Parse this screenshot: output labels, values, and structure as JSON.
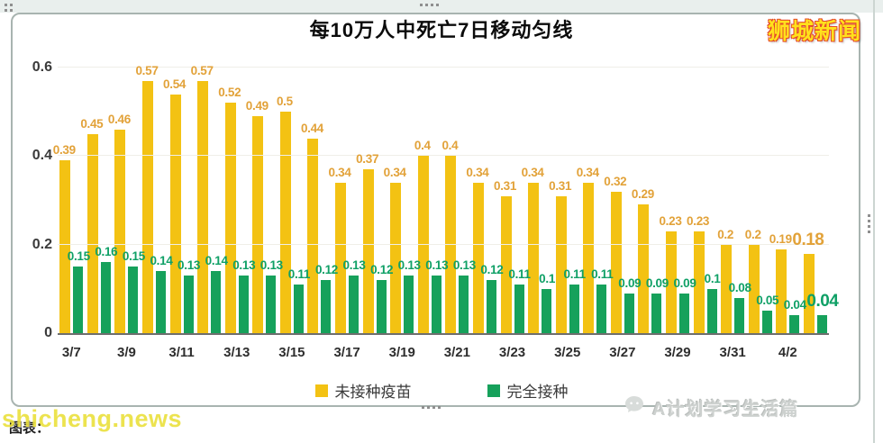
{
  "header": {
    "brand": "狮城新闻"
  },
  "chart_data": {
    "type": "bar",
    "title": "每10万人中死亡7日移动匀线",
    "categories": [
      "3/7",
      "3/8",
      "3/9",
      "3/10",
      "3/11",
      "3/12",
      "3/13",
      "3/14",
      "3/15",
      "3/16",
      "3/17",
      "3/18",
      "3/19",
      "3/20",
      "3/21",
      "3/22",
      "3/23",
      "3/24",
      "3/25",
      "3/26",
      "3/27",
      "3/28",
      "3/29",
      "3/30",
      "3/31",
      "4/1",
      "4/2",
      "4/3"
    ],
    "tick_every": 2,
    "x_tick_labels_visible": [
      "3/7",
      "3/9",
      "3/11",
      "3/13",
      "3/15",
      "3/17",
      "3/19",
      "3/21",
      "3/23",
      "3/25",
      "3/27",
      "3/29",
      "3/31",
      "4/2"
    ],
    "series": [
      {
        "name": "未接种疫苗",
        "color": "#F3C213",
        "label_color": "#E2A239",
        "values": [
          0.39,
          0.45,
          0.46,
          0.57,
          0.54,
          0.57,
          0.52,
          0.49,
          0.5,
          0.44,
          0.34,
          0.37,
          0.34,
          0.4,
          0.4,
          0.34,
          0.31,
          0.34,
          0.31,
          0.34,
          0.32,
          0.29,
          0.23,
          0.23,
          0.2,
          0.2,
          0.19,
          0.18
        ]
      },
      {
        "name": "完全接种",
        "color": "#16A15B",
        "label_color": "#0FA066",
        "values": [
          0.15,
          0.16,
          0.15,
          0.14,
          0.13,
          0.14,
          0.13,
          0.13,
          0.11,
          0.12,
          0.13,
          0.12,
          0.13,
          0.13,
          0.13,
          0.12,
          0.11,
          0.1,
          0.11,
          0.11,
          0.09,
          0.09,
          0.09,
          0.1,
          0.08,
          0.05,
          0.04,
          0.04
        ]
      }
    ],
    "ylim": [
      0,
      0.6
    ],
    "yticks": [
      0,
      0.2,
      0.4,
      0.6
    ],
    "grid": true,
    "legend_position": "bottom"
  },
  "footer": {
    "caption_left": "图表：",
    "watermark_left": "shicheng.news",
    "watermark_right": "A计划学习生活篇"
  },
  "colors": {
    "series_unvaccinated": "#F3C213",
    "series_vaccinated": "#16A15B",
    "label_unvaccinated": "#E2A239",
    "label_vaccinated": "#0FA066",
    "brand_fill": "#FFE11C",
    "brand_outline": "#E5492B",
    "watermark_yellow": "#EBE03C",
    "watermark_gray": "#CDD1CF",
    "axis_text": "#3A3A3A",
    "title_text": "#0B0B0B"
  }
}
